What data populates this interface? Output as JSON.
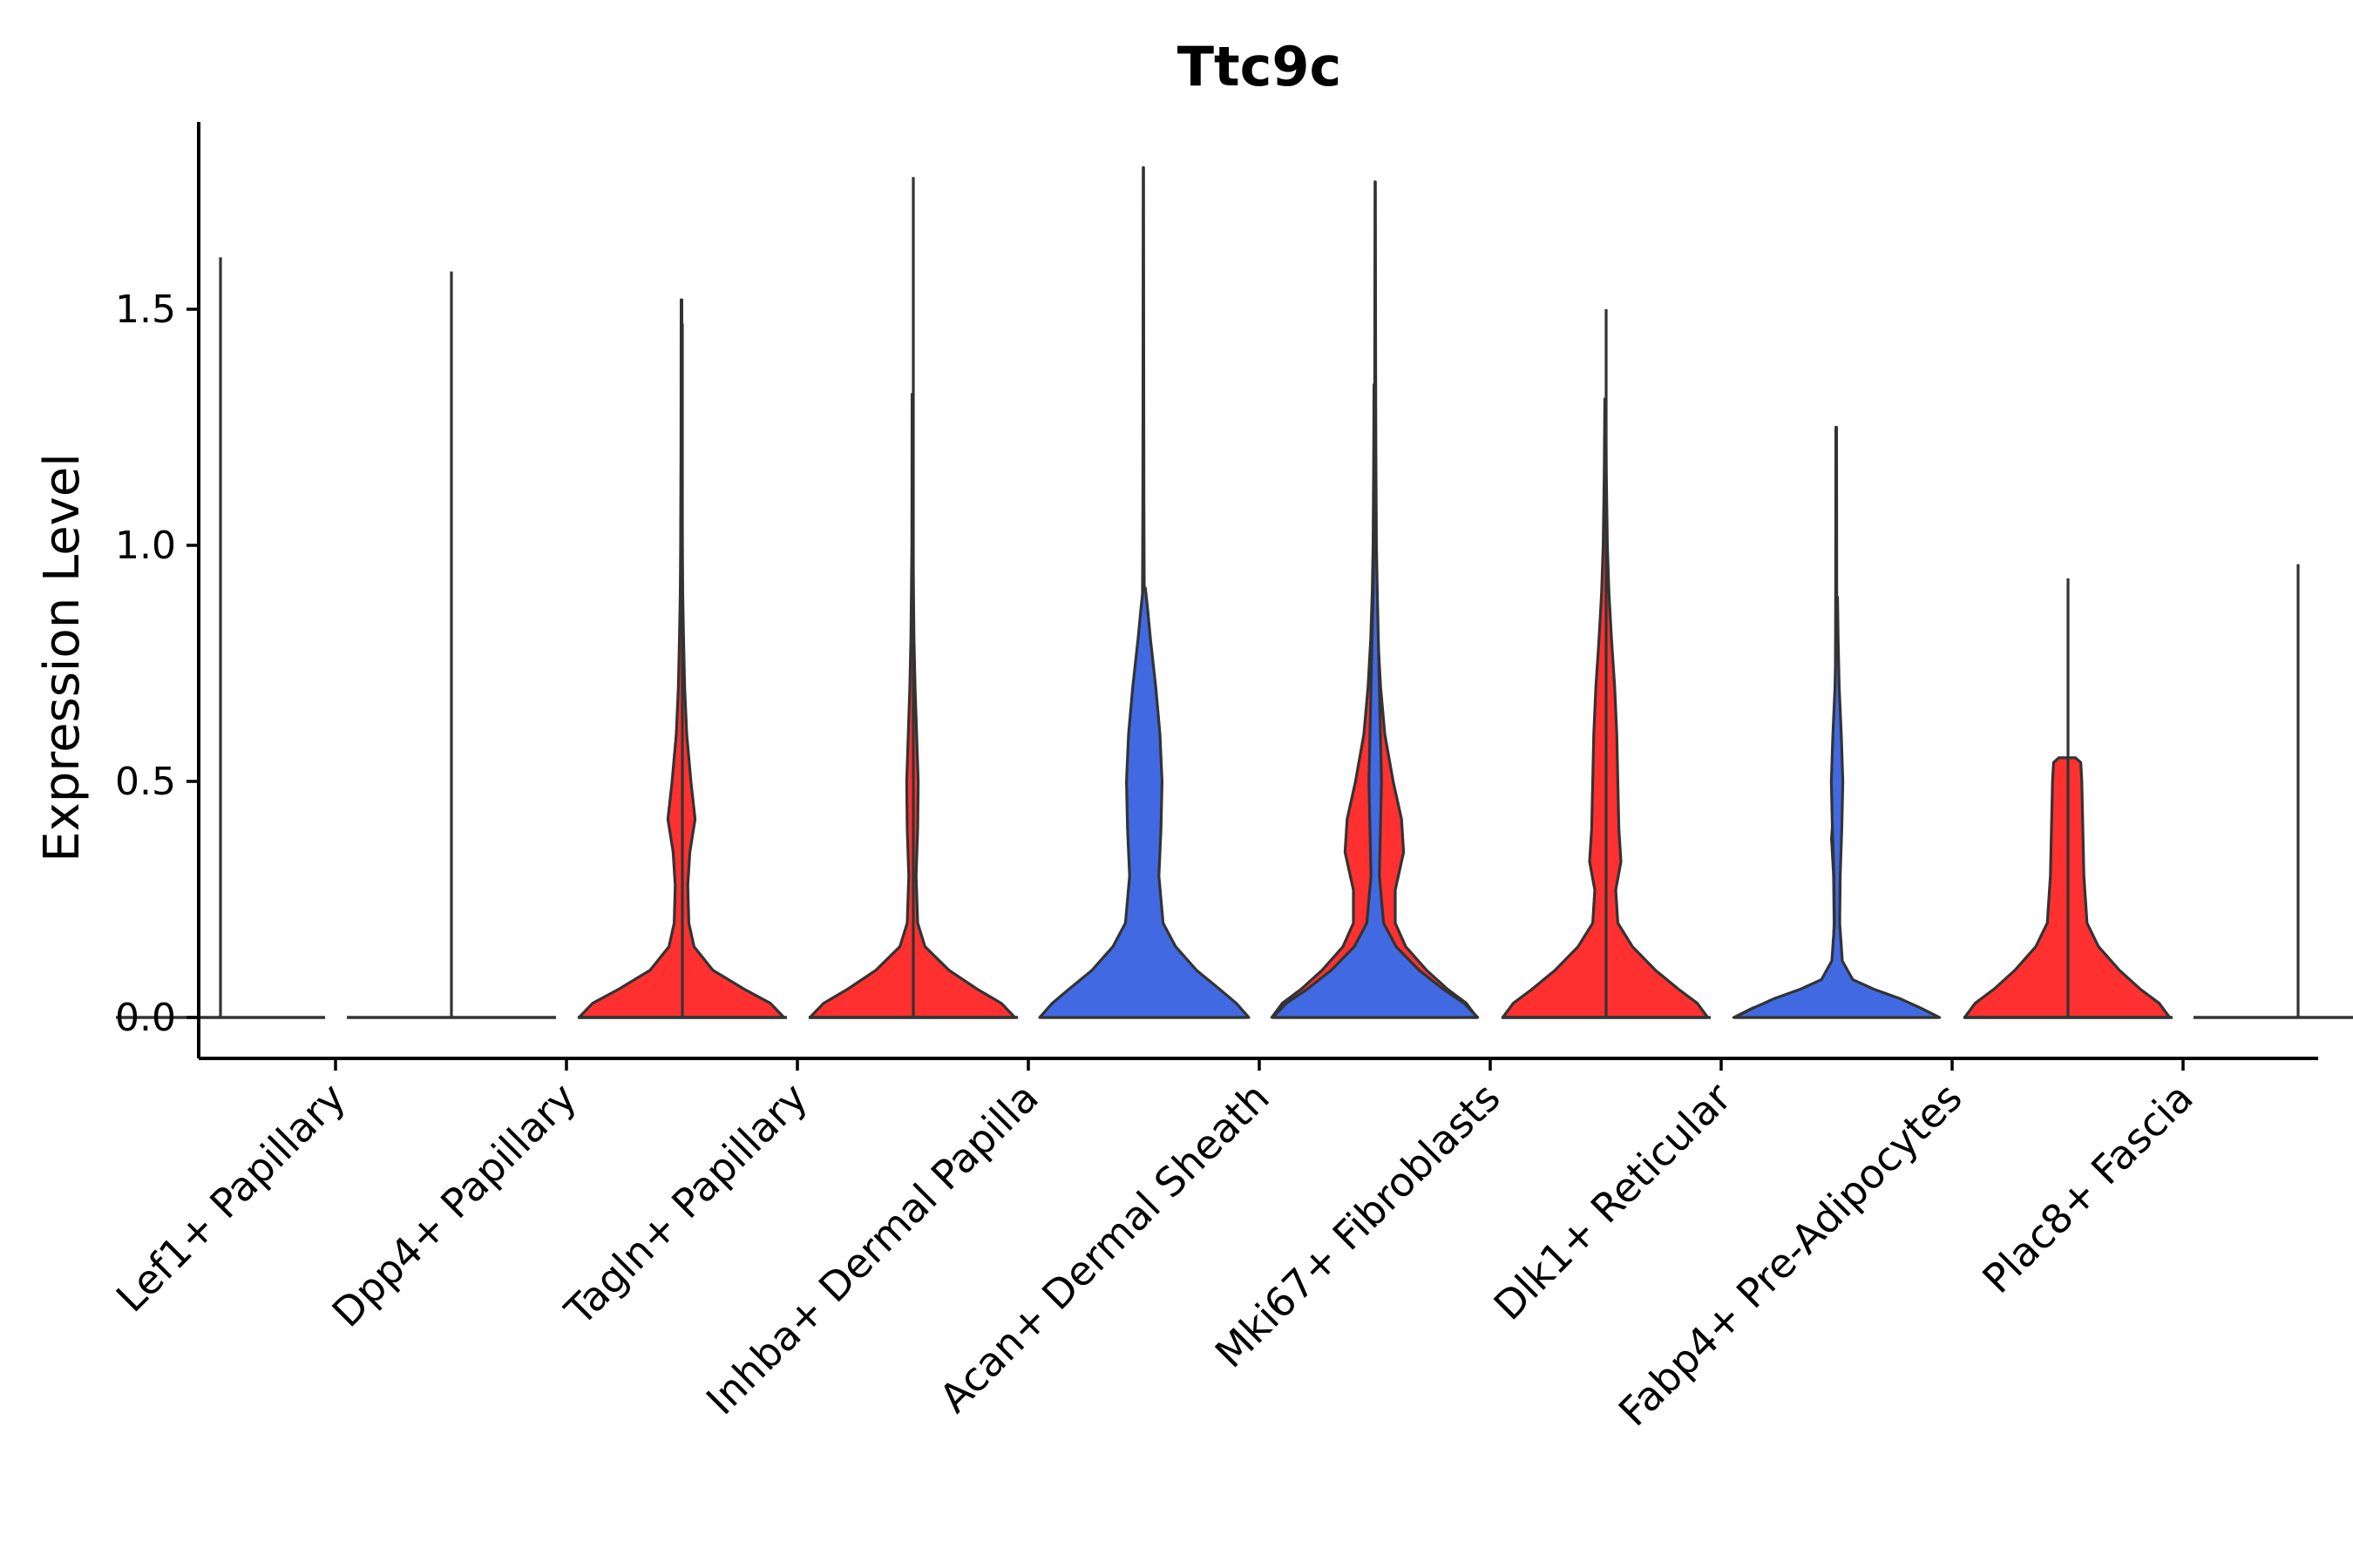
{
  "chart_data": {
    "type": "violin",
    "title": "Ttc9c",
    "xlabel": "",
    "ylabel": "Expression Level",
    "ylim": [
      -0.09,
      1.9
    ],
    "yticks": [
      0.0,
      0.5,
      1.0,
      1.5
    ],
    "ytick_labels": [
      "0.0",
      "0.5",
      "1.0",
      "1.5"
    ],
    "colors": {
      "blue": "#4169E1",
      "red": "#FF3030",
      "outline": "#333333"
    },
    "categories": [
      "Lef1+ Papillary",
      "Dpp4+ Papillary",
      "Tagln+ Papillary",
      "Inhba+ Dermal Papilla",
      "Acan+ Dermal Sheath",
      "Mki67+ Fibroblasts",
      "Dlk1+ Reticular",
      "Fabp4+ Pre-Adipocytes",
      "Plac8+ Fascia"
    ],
    "groups": [
      {
        "category": "Lef1+ Papillary",
        "violins": [
          {
            "side": "left",
            "color": "none",
            "max": 1.61
          }
        ]
      },
      {
        "category": "Dpp4+ Papillary",
        "violins": [
          {
            "side": "left",
            "color": "none",
            "max": 1.58
          },
          {
            "side": "right",
            "color": "red",
            "max": 1.52,
            "profile": [
              [
                0,
                0.98
              ],
              [
                0.03,
                0.85
              ],
              [
                0.06,
                0.6
              ],
              [
                0.1,
                0.3
              ],
              [
                0.15,
                0.12
              ],
              [
                0.2,
                0.07
              ],
              [
                0.28,
                0.06
              ],
              [
                0.35,
                0.08
              ],
              [
                0.42,
                0.13
              ],
              [
                0.5,
                0.09
              ],
              [
                0.6,
                0.05
              ],
              [
                0.7,
                0.03
              ],
              [
                0.8,
                0.02
              ],
              [
                0.9,
                0.012
              ],
              [
                1.0,
                0.008
              ],
              [
                1.2,
                0.005
              ],
              [
                1.52,
                0.003
              ]
            ]
          }
        ]
      },
      {
        "category": "Tagln+ Papillary",
        "violins": [
          {
            "side": "left",
            "color": "none",
            "max": 1.47
          },
          {
            "side": "right",
            "color": "red",
            "max": 1.32,
            "profile": [
              [
                0,
                0.98
              ],
              [
                0.03,
                0.85
              ],
              [
                0.06,
                0.62
              ],
              [
                0.1,
                0.35
              ],
              [
                0.15,
                0.12
              ],
              [
                0.2,
                0.05
              ],
              [
                0.3,
                0.035
              ],
              [
                0.4,
                0.05
              ],
              [
                0.5,
                0.055
              ],
              [
                0.6,
                0.04
              ],
              [
                0.7,
                0.025
              ],
              [
                0.8,
                0.015
              ],
              [
                0.9,
                0.01
              ],
              [
                1.0,
                0.006
              ],
              [
                1.32,
                0.003
              ]
            ]
          }
        ]
      },
      {
        "category": "Inhba+ Dermal Papilla",
        "violins": [
          {
            "side": "left",
            "color": "none",
            "max": 1.78
          },
          {
            "side": "right",
            "color": "red",
            "max": 1.8,
            "profile": [
              [
                0,
                0.98
              ],
              [
                0.03,
                0.85
              ],
              [
                0.06,
                0.6
              ],
              [
                0.1,
                0.3
              ],
              [
                0.14,
                0.1
              ],
              [
                0.2,
                0.025
              ],
              [
                0.3,
                0.018
              ],
              [
                0.45,
                0.02
              ],
              [
                0.55,
                0.015
              ],
              [
                0.66,
                0.025
              ],
              [
                0.75,
                0.012
              ],
              [
                0.9,
                0.008
              ],
              [
                1.1,
                0.005
              ],
              [
                1.4,
                0.003
              ],
              [
                1.8,
                0.002
              ]
            ]
          }
        ]
      },
      {
        "category": "Acan+ Dermal Sheath",
        "violins": [
          {
            "side": "left",
            "color": "blue",
            "max": 0.91,
            "profile": [
              [
                0,
                1.0
              ],
              [
                0.03,
                0.88
              ],
              [
                0.06,
                0.72
              ],
              [
                0.1,
                0.5
              ],
              [
                0.15,
                0.3
              ],
              [
                0.2,
                0.18
              ],
              [
                0.3,
                0.14
              ],
              [
                0.4,
                0.16
              ],
              [
                0.5,
                0.17
              ],
              [
                0.6,
                0.15
              ],
              [
                0.7,
                0.11
              ],
              [
                0.8,
                0.06
              ],
              [
                0.87,
                0.03
              ],
              [
                0.91,
                0.01
              ]
            ]
          },
          {
            "side": "right",
            "color": "red",
            "max": 1.34,
            "profile": [
              [
                0,
                0.98
              ],
              [
                0.03,
                0.88
              ],
              [
                0.06,
                0.7
              ],
              [
                0.1,
                0.5
              ],
              [
                0.15,
                0.3
              ],
              [
                0.2,
                0.2
              ],
              [
                0.27,
                0.2
              ],
              [
                0.35,
                0.28
              ],
              [
                0.42,
                0.26
              ],
              [
                0.5,
                0.18
              ],
              [
                0.6,
                0.1
              ],
              [
                0.7,
                0.06
              ],
              [
                0.8,
                0.035
              ],
              [
                0.9,
                0.02
              ],
              [
                1.0,
                0.012
              ],
              [
                1.2,
                0.006
              ],
              [
                1.34,
                0.003
              ]
            ]
          }
        ]
      },
      {
        "category": "Mki67+ Fibroblasts",
        "violins": [
          {
            "side": "left",
            "color": "blue",
            "max": 1.77,
            "profile": [
              [
                0,
                0.98
              ],
              [
                0.03,
                0.85
              ],
              [
                0.06,
                0.65
              ],
              [
                0.1,
                0.42
              ],
              [
                0.15,
                0.2
              ],
              [
                0.2,
                0.08
              ],
              [
                0.3,
                0.04
              ],
              [
                0.4,
                0.05
              ],
              [
                0.5,
                0.06
              ],
              [
                0.6,
                0.05
              ],
              [
                0.7,
                0.04
              ],
              [
                0.8,
                0.03
              ],
              [
                0.9,
                0.02
              ],
              [
                1.0,
                0.012
              ],
              [
                1.2,
                0.007
              ],
              [
                1.4,
                0.004
              ],
              [
                1.77,
                0.002
              ]
            ]
          },
          {
            "side": "right",
            "color": "red",
            "max": 1.31,
            "profile": [
              [
                0,
                0.98
              ],
              [
                0.03,
                0.88
              ],
              [
                0.06,
                0.7
              ],
              [
                0.1,
                0.48
              ],
              [
                0.15,
                0.26
              ],
              [
                0.2,
                0.12
              ],
              [
                0.27,
                0.1
              ],
              [
                0.33,
                0.15
              ],
              [
                0.4,
                0.13
              ],
              [
                0.5,
                0.12
              ],
              [
                0.6,
                0.11
              ],
              [
                0.7,
                0.09
              ],
              [
                0.8,
                0.06
              ],
              [
                0.9,
                0.035
              ],
              [
                1.0,
                0.02
              ],
              [
                1.15,
                0.01
              ],
              [
                1.31,
                0.004
              ]
            ]
          }
        ]
      },
      {
        "category": "Dlk1+ Reticular",
        "violins": [
          {
            "side": "left",
            "color": "none",
            "max": 1.5
          },
          {
            "side": "right",
            "color": "red",
            "max": 1.25,
            "profile": [
              [
                0,
                0.98
              ],
              [
                0.02,
                0.8
              ],
              [
                0.04,
                0.55
              ],
              [
                0.06,
                0.3
              ],
              [
                0.08,
                0.12
              ],
              [
                0.12,
                0.03
              ],
              [
                0.2,
                0.02
              ],
              [
                0.3,
                0.025
              ],
              [
                0.38,
                0.045
              ],
              [
                0.45,
                0.02
              ],
              [
                0.55,
                0.012
              ],
              [
                0.7,
                0.008
              ],
              [
                0.9,
                0.005
              ],
              [
                1.25,
                0.003
              ]
            ]
          }
        ]
      },
      {
        "category": "Fabp4+ Pre-Adipocytes",
        "violins": [
          {
            "side": "left",
            "color": "blue",
            "max": 0.89,
            "profile": [
              [
                0,
                0.98
              ],
              [
                0.02,
                0.8
              ],
              [
                0.04,
                0.6
              ],
              [
                0.06,
                0.35
              ],
              [
                0.08,
                0.15
              ],
              [
                0.12,
                0.05
              ],
              [
                0.2,
                0.025
              ],
              [
                0.3,
                0.03
              ],
              [
                0.4,
                0.045
              ],
              [
                0.5,
                0.055
              ],
              [
                0.6,
                0.04
              ],
              [
                0.7,
                0.02
              ],
              [
                0.8,
                0.01
              ],
              [
                0.89,
                0.004
              ]
            ]
          },
          {
            "side": "right",
            "color": "red",
            "max": 0.55,
            "profile": [
              [
                0,
                0.98
              ],
              [
                0.03,
                0.88
              ],
              [
                0.06,
                0.7
              ],
              [
                0.1,
                0.5
              ],
              [
                0.15,
                0.3
              ],
              [
                0.2,
                0.19
              ],
              [
                0.3,
                0.16
              ],
              [
                0.4,
                0.15
              ],
              [
                0.5,
                0.14
              ],
              [
                0.54,
                0.13
              ],
              [
                0.55,
                0.08
              ]
            ]
          }
        ]
      },
      {
        "category": "Plac8+ Fascia",
        "violins": [
          {
            "side": "left",
            "color": "none",
            "max": 0.93
          },
          {
            "side": "right",
            "color": "none",
            "max": 0.96
          }
        ]
      }
    ]
  }
}
